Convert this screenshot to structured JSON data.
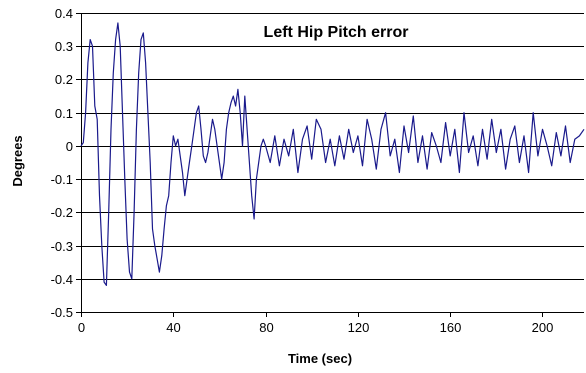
{
  "chart_data": {
    "type": "line",
    "title": "Left Hip Pitch error",
    "xlabel": "Time (sec)",
    "ylabel": "Degrees",
    "xlim": [
      0,
      218
    ],
    "ylim": [
      -0.5,
      0.4
    ],
    "grid": "horizontal",
    "x_ticks": [
      0,
      40,
      80,
      120,
      160,
      200
    ],
    "y_ticks": [
      -0.5,
      -0.4,
      -0.3,
      -0.2,
      -0.1,
      0,
      0.1,
      0.2,
      0.3,
      0.4
    ],
    "x_tick_labels": [
      "0",
      "40",
      "80",
      "120",
      "160",
      "200"
    ],
    "y_tick_labels": [
      "-0.5",
      "-0.4",
      "-0.3",
      "-0.2",
      "-0.1",
      "0",
      "0.1",
      "0.2",
      "0.3",
      "0.4"
    ],
    "line_color": "#1a1a8c",
    "series": [
      {
        "x": [
          0,
          1,
          2,
          3,
          4,
          5,
          6,
          7,
          8,
          9,
          10,
          11,
          12,
          13,
          14,
          15,
          16,
          17,
          18,
          19,
          20,
          21,
          22,
          23,
          24,
          25,
          26,
          27,
          28,
          29,
          30,
          31,
          32,
          33,
          34,
          35,
          36,
          37,
          38,
          39,
          40,
          41,
          42,
          43,
          44,
          45,
          46,
          47,
          48,
          49,
          50,
          51,
          52,
          53,
          54,
          55,
          56,
          57,
          58,
          59,
          60,
          61,
          62,
          63,
          64,
          65,
          66,
          67,
          68,
          69,
          70,
          71,
          72,
          73,
          74,
          75,
          76,
          77,
          78,
          79,
          80,
          82,
          84,
          86,
          88,
          90,
          92,
          94,
          96,
          98,
          100,
          102,
          104,
          106,
          108,
          110,
          112,
          114,
          116,
          118,
          120,
          122,
          124,
          126,
          128,
          130,
          132,
          134,
          136,
          138,
          140,
          142,
          144,
          146,
          148,
          150,
          152,
          154,
          156,
          158,
          160,
          162,
          164,
          166,
          168,
          170,
          172,
          174,
          176,
          178,
          180,
          182,
          184,
          186,
          188,
          190,
          192,
          194,
          196,
          198,
          200,
          202,
          204,
          206,
          208,
          210,
          212,
          214,
          216,
          218
        ],
        "y": [
          0.0,
          0.01,
          0.1,
          0.25,
          0.32,
          0.3,
          0.12,
          0.08,
          -0.15,
          -0.3,
          -0.41,
          -0.42,
          -0.2,
          0.05,
          0.22,
          0.32,
          0.37,
          0.3,
          0.1,
          -0.1,
          -0.28,
          -0.38,
          -0.4,
          -0.2,
          0.05,
          0.22,
          0.32,
          0.34,
          0.25,
          0.1,
          -0.05,
          -0.25,
          -0.3,
          -0.34,
          -0.38,
          -0.33,
          -0.25,
          -0.18,
          -0.15,
          -0.05,
          0.03,
          0.0,
          0.02,
          -0.03,
          -0.08,
          -0.15,
          -0.1,
          -0.05,
          0.0,
          0.05,
          0.1,
          0.12,
          0.05,
          -0.03,
          -0.05,
          -0.02,
          0.03,
          0.08,
          0.05,
          0.0,
          -0.05,
          -0.1,
          -0.05,
          0.05,
          0.1,
          0.13,
          0.15,
          0.12,
          0.17,
          0.1,
          0.0,
          0.15,
          0.05,
          -0.05,
          -0.15,
          -0.22,
          -0.1,
          -0.05,
          0.0,
          0.02,
          0.0,
          -0.05,
          0.03,
          -0.06,
          0.02,
          -0.03,
          0.05,
          -0.08,
          0.02,
          0.06,
          -0.04,
          0.08,
          0.05,
          -0.05,
          0.02,
          -0.06,
          0.03,
          -0.04,
          0.05,
          -0.02,
          0.03,
          -0.06,
          0.08,
          0.02,
          -0.07,
          0.05,
          0.1,
          -0.03,
          0.02,
          -0.08,
          0.06,
          -0.02,
          0.09,
          -0.05,
          0.03,
          -0.07,
          0.04,
          0.0,
          -0.05,
          0.07,
          -0.03,
          0.05,
          -0.08,
          0.1,
          -0.02,
          0.03,
          -0.06,
          0.05,
          -0.04,
          0.08,
          -0.02,
          0.05,
          -0.07,
          0.02,
          0.06,
          -0.05,
          0.03,
          -0.08,
          0.1,
          -0.03,
          0.05,
          0.0,
          -0.06,
          0.04,
          -0.03,
          0.06,
          -0.05,
          0.02,
          0.03,
          0.05
        ]
      }
    ]
  }
}
